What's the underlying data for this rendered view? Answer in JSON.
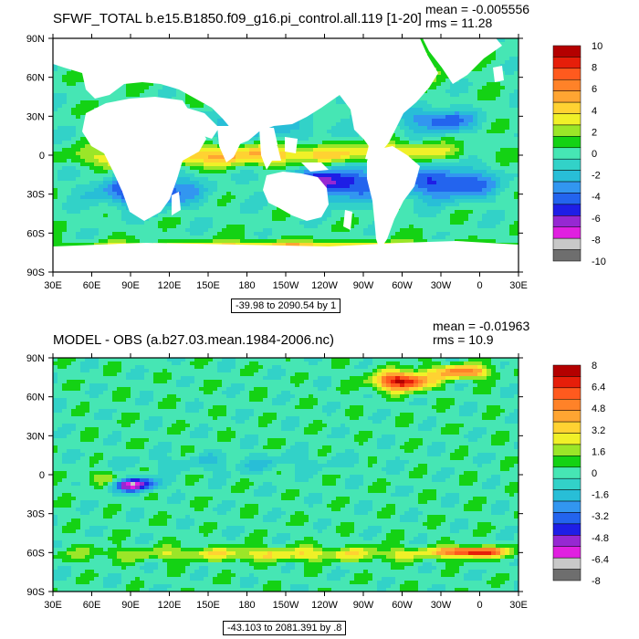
{
  "panels": [
    {
      "title": "SFWF_TOTAL b.e15.B1850.f09_g16.pi_control.all.119 [1-20]",
      "mean_label": "mean = -0.005556",
      "rms_label": "rms = 11.28",
      "range_label": "-39.98 to 2090.54 by 1",
      "lat_labels": [
        "90N",
        "60N",
        "30N",
        "0",
        "30S",
        "60S",
        "90S"
      ],
      "lon_labels": [
        "30E",
        "60E",
        "90E",
        "120E",
        "150E",
        "180",
        "150W",
        "120W",
        "90W",
        "60W",
        "30W",
        "0",
        "30E"
      ],
      "colorbar_labels": [
        "10",
        "8",
        "6",
        "4",
        "2",
        "0",
        "-2",
        "-4",
        "-6",
        "-8",
        "-10"
      ]
    },
    {
      "title": "MODEL - OBS (a.b27.03.mean.1984-2006.nc)",
      "mean_label": "mean = -0.01963",
      "rms_label": "rms = 10.9",
      "range_label": "-43.103 to 2081.391 by .8",
      "lat_labels": [
        "90N",
        "60N",
        "30N",
        "0",
        "30S",
        "60S",
        "90S"
      ],
      "lon_labels": [
        "30E",
        "60E",
        "90E",
        "120E",
        "150E",
        "180",
        "150W",
        "120W",
        "90W",
        "60W",
        "30W",
        "0",
        "30E"
      ],
      "colorbar_labels": [
        "8",
        "6.4",
        "4.8",
        "3.2",
        "1.6",
        "0",
        "-1.6",
        "-3.2",
        "-4.8",
        "-6.4",
        "-8"
      ]
    }
  ],
  "palette": [
    "#6e6e6e",
    "#c8c8c8",
    "#e020e0",
    "#9628d2",
    "#1e1ee6",
    "#2364ee",
    "#3296f0",
    "#28bed7",
    "#32d2c8",
    "#46e6b4",
    "#14d214",
    "#9be628",
    "#f0f028",
    "#ffd232",
    "#ffa532",
    "#ff8228",
    "#ff5a1e",
    "#e61e0a",
    "#b40000"
  ],
  "colors": {
    "land": "#ffffff",
    "background": "#ffffff",
    "frame": "#000000"
  }
}
